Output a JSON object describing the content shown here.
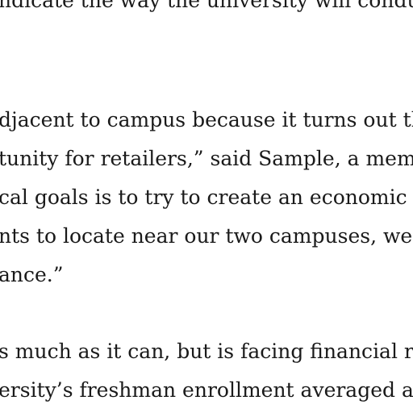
{
  "article": {
    "lines": [
      "ndicate the way the university will conduct",
      "djacent to campus because it turns out tha",
      "tunity for retailers,” said Sample, a memb",
      "cal goals is to try to create an economic op",
      "nts to locate near our two campuses, we w",
      "ance.”",
      "s much as it can, but is facing financial rea",
      "ersity’s freshman enrollment averaged abo"
    ]
  }
}
